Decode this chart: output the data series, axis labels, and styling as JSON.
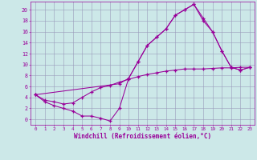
{
  "xlabel": "Windchill (Refroidissement éolien,°C)",
  "bg_color": "#cce8e8",
  "grid_color": "#9999bb",
  "line_color": "#990099",
  "xlim": [
    -0.5,
    23.5
  ],
  "ylim": [
    -1.0,
    21.5
  ],
  "xticks": [
    0,
    1,
    2,
    3,
    4,
    5,
    6,
    7,
    8,
    9,
    10,
    11,
    12,
    13,
    14,
    15,
    16,
    17,
    18,
    19,
    20,
    21,
    22,
    23
  ],
  "yticks": [
    0,
    2,
    4,
    6,
    8,
    10,
    12,
    14,
    16,
    18,
    20
  ],
  "line1_x": [
    0,
    1,
    2,
    3,
    4,
    5,
    6,
    7,
    8,
    9,
    10,
    11,
    12,
    13,
    14,
    15,
    16,
    17,
    18,
    19,
    20,
    21,
    22,
    23
  ],
  "line1_y": [
    4.5,
    3.2,
    2.5,
    2.0,
    1.5,
    0.6,
    0.6,
    0.2,
    -0.3,
    2.0,
    7.5,
    10.5,
    13.5,
    15.0,
    16.5,
    19.0,
    20.0,
    21.0,
    18.0,
    16.0,
    12.5,
    9.5,
    9.0,
    9.5
  ],
  "line2_x": [
    0,
    1,
    2,
    3,
    4,
    5,
    6,
    7,
    8,
    9,
    10,
    11,
    12,
    13,
    14,
    15,
    16,
    17,
    18,
    19,
    20,
    21,
    22,
    23
  ],
  "line2_y": [
    4.5,
    3.5,
    3.2,
    2.8,
    3.0,
    4.0,
    5.0,
    5.8,
    6.2,
    6.8,
    7.3,
    7.8,
    8.2,
    8.5,
    8.8,
    9.0,
    9.2,
    9.2,
    9.2,
    9.3,
    9.4,
    9.4,
    9.5,
    9.5
  ],
  "line3_x": [
    0,
    9,
    10,
    11,
    12,
    13,
    14,
    15,
    16,
    17,
    18,
    19,
    20,
    21,
    22,
    23
  ],
  "line3_y": [
    4.5,
    6.5,
    7.5,
    10.5,
    13.5,
    15.0,
    16.5,
    19.0,
    20.0,
    21.0,
    18.5,
    16.0,
    12.5,
    9.5,
    9.0,
    9.5
  ]
}
